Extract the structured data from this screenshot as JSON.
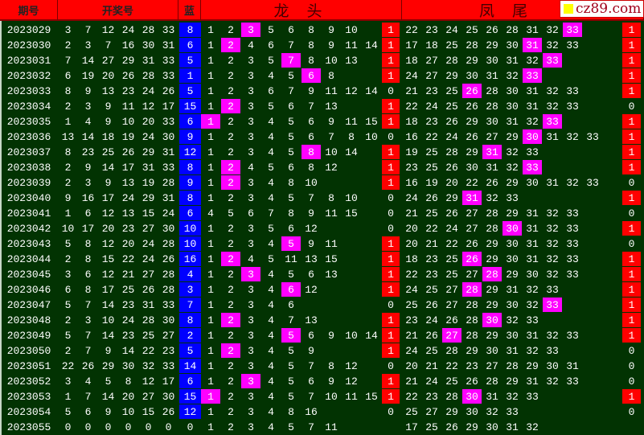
{
  "header": {
    "issue": "期号",
    "numbers": "开奖号",
    "blue": "蓝",
    "dragon": "龙 头",
    "phoenix": "凤 尾",
    "logo": "cz89.com"
  },
  "colors": {
    "background": "#023302",
    "header": "#ff0000",
    "highlight": "#ff00ff",
    "flag": "#ff0000",
    "blue_ball": "#0000ff"
  },
  "rows": [
    {
      "issue": "2023029",
      "numbers": [
        3,
        7,
        12,
        24,
        28,
        33
      ],
      "blue": 8,
      "dragon": [
        1,
        2,
        3,
        5,
        6,
        8,
        9,
        10
      ],
      "dragon_hl": 2,
      "dragon_flag": 1,
      "phoenix": [
        22,
        23,
        24,
        25,
        26,
        28,
        31,
        32,
        33
      ],
      "phoenix_hl": 8,
      "phoenix_flag": 1
    },
    {
      "issue": "2023030",
      "numbers": [
        2,
        3,
        7,
        16,
        30,
        31
      ],
      "blue": 6,
      "dragon": [
        1,
        2,
        4,
        6,
        7,
        8,
        9,
        11,
        14
      ],
      "dragon_hl": 1,
      "dragon_flag": 1,
      "phoenix": [
        17,
        18,
        25,
        28,
        29,
        30,
        31,
        32,
        33
      ],
      "phoenix_hl": 6,
      "phoenix_flag": 1
    },
    {
      "issue": "2023031",
      "numbers": [
        7,
        14,
        27,
        29,
        31,
        33
      ],
      "blue": 5,
      "dragon": [
        1,
        2,
        3,
        5,
        7,
        8,
        10,
        13
      ],
      "dragon_hl": 4,
      "dragon_flag": 1,
      "phoenix": [
        18,
        27,
        28,
        29,
        30,
        31,
        32,
        33
      ],
      "phoenix_hl": 7,
      "phoenix_flag": 1
    },
    {
      "issue": "2023032",
      "numbers": [
        6,
        19,
        20,
        26,
        28,
        33
      ],
      "blue": 1,
      "dragon": [
        1,
        2,
        3,
        4,
        5,
        6,
        8
      ],
      "dragon_hl": 5,
      "dragon_flag": 1,
      "phoenix": [
        24,
        27,
        29,
        30,
        31,
        32,
        33
      ],
      "phoenix_hl": 6,
      "phoenix_flag": 1
    },
    {
      "issue": "2023033",
      "numbers": [
        8,
        9,
        13,
        23,
        24,
        26
      ],
      "blue": 5,
      "dragon": [
        1,
        2,
        3,
        6,
        7,
        9,
        11,
        12,
        14
      ],
      "dragon_hl": null,
      "dragon_flag": 0,
      "phoenix": [
        21,
        23,
        25,
        26,
        28,
        30,
        31,
        32,
        33
      ],
      "phoenix_hl": 3,
      "phoenix_flag": 1
    },
    {
      "issue": "2023034",
      "numbers": [
        2,
        3,
        9,
        11,
        12,
        17
      ],
      "blue": 15,
      "dragon": [
        1,
        2,
        3,
        5,
        6,
        7,
        13
      ],
      "dragon_hl": 1,
      "dragon_flag": 1,
      "phoenix": [
        22,
        24,
        25,
        26,
        28,
        30,
        31,
        32,
        33
      ],
      "phoenix_hl": null,
      "phoenix_flag": 0
    },
    {
      "issue": "2023035",
      "numbers": [
        1,
        4,
        9,
        10,
        20,
        33
      ],
      "blue": 6,
      "dragon": [
        1,
        2,
        3,
        4,
        5,
        6,
        9,
        11,
        15
      ],
      "dragon_hl": 0,
      "dragon_flag": 1,
      "phoenix": [
        18,
        23,
        26,
        29,
        30,
        31,
        32,
        33
      ],
      "phoenix_hl": 7,
      "phoenix_flag": 1
    },
    {
      "issue": "2023036",
      "numbers": [
        13,
        14,
        18,
        19,
        24,
        30
      ],
      "blue": 9,
      "dragon": [
        1,
        2,
        3,
        4,
        5,
        6,
        7,
        8,
        10
      ],
      "dragon_hl": null,
      "dragon_flag": 0,
      "phoenix": [
        16,
        22,
        24,
        26,
        27,
        29,
        30,
        31,
        32,
        33
      ],
      "phoenix_hl": 6,
      "phoenix_flag": 1
    },
    {
      "issue": "2023037",
      "numbers": [
        8,
        23,
        25,
        26,
        29,
        31
      ],
      "blue": 12,
      "dragon": [
        1,
        2,
        3,
        4,
        5,
        8,
        10,
        14
      ],
      "dragon_hl": 5,
      "dragon_flag": 1,
      "phoenix": [
        19,
        25,
        28,
        29,
        31,
        32,
        33
      ],
      "phoenix_hl": 4,
      "phoenix_flag": 1
    },
    {
      "issue": "2023038",
      "numbers": [
        2,
        9,
        14,
        17,
        31,
        33
      ],
      "blue": 8,
      "dragon": [
        1,
        2,
        4,
        5,
        6,
        8,
        12
      ],
      "dragon_hl": 1,
      "dragon_flag": 1,
      "phoenix": [
        23,
        25,
        26,
        30,
        31,
        32,
        33
      ],
      "phoenix_hl": 6,
      "phoenix_flag": 1
    },
    {
      "issue": "2023039",
      "numbers": [
        2,
        3,
        9,
        13,
        19,
        28
      ],
      "blue": 9,
      "dragon": [
        1,
        2,
        3,
        4,
        8,
        10
      ],
      "dragon_hl": 1,
      "dragon_flag": 1,
      "phoenix": [
        16,
        19,
        20,
        22,
        26,
        29,
        30,
        31,
        32,
        33
      ],
      "phoenix_hl": null,
      "phoenix_flag": 0
    },
    {
      "issue": "2023040",
      "numbers": [
        9,
        16,
        17,
        24,
        29,
        31
      ],
      "blue": 8,
      "dragon": [
        1,
        2,
        3,
        4,
        5,
        7,
        8,
        10
      ],
      "dragon_hl": null,
      "dragon_flag": 0,
      "phoenix": [
        24,
        26,
        29,
        31,
        32,
        33
      ],
      "phoenix_hl": 3,
      "phoenix_flag": 1
    },
    {
      "issue": "2023041",
      "numbers": [
        1,
        6,
        12,
        13,
        15,
        24
      ],
      "blue": 6,
      "dragon": [
        4,
        5,
        6,
        7,
        8,
        9,
        11,
        15
      ],
      "dragon_hl": null,
      "dragon_flag": 0,
      "phoenix": [
        21,
        25,
        26,
        27,
        28,
        29,
        31,
        32,
        33
      ],
      "phoenix_hl": null,
      "phoenix_flag": 0
    },
    {
      "issue": "2023042",
      "numbers": [
        10,
        17,
        20,
        23,
        27,
        30
      ],
      "blue": 10,
      "dragon": [
        1,
        2,
        3,
        5,
        6,
        12
      ],
      "dragon_hl": null,
      "dragon_flag": 0,
      "phoenix": [
        20,
        22,
        24,
        27,
        28,
        30,
        31,
        32,
        33
      ],
      "phoenix_hl": 5,
      "phoenix_flag": 1
    },
    {
      "issue": "2023043",
      "numbers": [
        5,
        8,
        12,
        20,
        24,
        28
      ],
      "blue": 10,
      "dragon": [
        1,
        2,
        3,
        4,
        5,
        9,
        11
      ],
      "dragon_hl": 4,
      "dragon_flag": 1,
      "phoenix": [
        20,
        21,
        22,
        26,
        29,
        30,
        31,
        32,
        33
      ],
      "phoenix_hl": null,
      "phoenix_flag": 0
    },
    {
      "issue": "2023044",
      "numbers": [
        2,
        8,
        15,
        22,
        24,
        26
      ],
      "blue": 16,
      "dragon": [
        1,
        2,
        4,
        5,
        11,
        13,
        15
      ],
      "dragon_hl": 1,
      "dragon_flag": 1,
      "phoenix": [
        18,
        23,
        25,
        26,
        29,
        30,
        31,
        32,
        33
      ],
      "phoenix_hl": 3,
      "phoenix_flag": 1
    },
    {
      "issue": "2023045",
      "numbers": [
        3,
        6,
        12,
        21,
        27,
        28
      ],
      "blue": 4,
      "dragon": [
        1,
        2,
        3,
        4,
        5,
        6,
        13
      ],
      "dragon_hl": 2,
      "dragon_flag": 1,
      "phoenix": [
        22,
        23,
        25,
        27,
        28,
        29,
        30,
        32,
        33
      ],
      "phoenix_hl": 4,
      "phoenix_flag": 1
    },
    {
      "issue": "2023046",
      "numbers": [
        6,
        8,
        17,
        25,
        26,
        28
      ],
      "blue": 3,
      "dragon": [
        1,
        2,
        3,
        4,
        6,
        12
      ],
      "dragon_hl": 4,
      "dragon_flag": 1,
      "phoenix": [
        24,
        25,
        27,
        28,
        29,
        31,
        32,
        33
      ],
      "phoenix_hl": 3,
      "phoenix_flag": 1
    },
    {
      "issue": "2023047",
      "numbers": [
        5,
        7,
        14,
        23,
        31,
        33
      ],
      "blue": 7,
      "dragon": [
        1,
        2,
        3,
        4,
        6
      ],
      "dragon_hl": null,
      "dragon_flag": 0,
      "phoenix": [
        25,
        26,
        27,
        28,
        29,
        30,
        32,
        33
      ],
      "phoenix_hl": 7,
      "phoenix_flag": 1
    },
    {
      "issue": "2023048",
      "numbers": [
        2,
        3,
        10,
        24,
        28,
        30
      ],
      "blue": 8,
      "dragon": [
        1,
        2,
        3,
        4,
        7,
        13
      ],
      "dragon_hl": 1,
      "dragon_flag": 1,
      "phoenix": [
        23,
        24,
        26,
        28,
        30,
        32,
        33
      ],
      "phoenix_hl": 4,
      "phoenix_flag": 1
    },
    {
      "issue": "2023049",
      "numbers": [
        5,
        7,
        14,
        23,
        25,
        27
      ],
      "blue": 2,
      "dragon": [
        1,
        2,
        3,
        4,
        5,
        6,
        9,
        10,
        14
      ],
      "dragon_hl": 4,
      "dragon_flag": 1,
      "phoenix": [
        21,
        26,
        27,
        28,
        29,
        30,
        31,
        32,
        33
      ],
      "phoenix_hl": 2,
      "phoenix_flag": 1
    },
    {
      "issue": "2023050",
      "numbers": [
        2,
        7,
        9,
        14,
        22,
        23
      ],
      "blue": 5,
      "dragon": [
        1,
        2,
        3,
        4,
        5,
        9
      ],
      "dragon_hl": 1,
      "dragon_flag": 1,
      "phoenix": [
        24,
        25,
        28,
        29,
        30,
        31,
        32,
        33
      ],
      "phoenix_hl": null,
      "phoenix_flag": 0
    },
    {
      "issue": "2023051",
      "numbers": [
        22,
        26,
        29,
        30,
        32,
        33
      ],
      "blue": 14,
      "dragon": [
        1,
        2,
        3,
        4,
        5,
        7,
        8,
        12
      ],
      "dragon_hl": null,
      "dragon_flag": 0,
      "phoenix": [
        20,
        21,
        22,
        23,
        27,
        28,
        29,
        30,
        31
      ],
      "phoenix_hl": null,
      "phoenix_flag": 0
    },
    {
      "issue": "2023052",
      "numbers": [
        3,
        4,
        5,
        8,
        12,
        17
      ],
      "blue": 6,
      "dragon": [
        1,
        2,
        3,
        4,
        5,
        6,
        9,
        12
      ],
      "dragon_hl": 2,
      "dragon_flag": 1,
      "phoenix": [
        21,
        24,
        25,
        26,
        28,
        29,
        31,
        32,
        33
      ],
      "phoenix_hl": null,
      "phoenix_flag": 0
    },
    {
      "issue": "2023053",
      "numbers": [
        1,
        7,
        14,
        20,
        27,
        30
      ],
      "blue": 15,
      "dragon": [
        1,
        2,
        3,
        4,
        5,
        7,
        10,
        11,
        15
      ],
      "dragon_hl": 0,
      "dragon_flag": 1,
      "phoenix": [
        22,
        23,
        28,
        30,
        31,
        32,
        33
      ],
      "phoenix_hl": 3,
      "phoenix_flag": 1
    },
    {
      "issue": "2023054",
      "numbers": [
        5,
        6,
        9,
        10,
        15,
        26
      ],
      "blue": 12,
      "dragon": [
        1,
        2,
        3,
        4,
        8,
        16
      ],
      "dragon_hl": null,
      "dragon_flag": 0,
      "phoenix": [
        25,
        27,
        29,
        30,
        32,
        33
      ],
      "phoenix_hl": null,
      "phoenix_flag": 0
    },
    {
      "issue": "2023055",
      "numbers": [
        0,
        0,
        0,
        0,
        0,
        0
      ],
      "blue": 0,
      "dragon": [
        1,
        2,
        3,
        4,
        5,
        7,
        11
      ],
      "dragon_hl": null,
      "dragon_flag": null,
      "phoenix": [
        17,
        25,
        26,
        29,
        30,
        31,
        32
      ],
      "phoenix_hl": null,
      "phoenix_flag": null
    }
  ]
}
